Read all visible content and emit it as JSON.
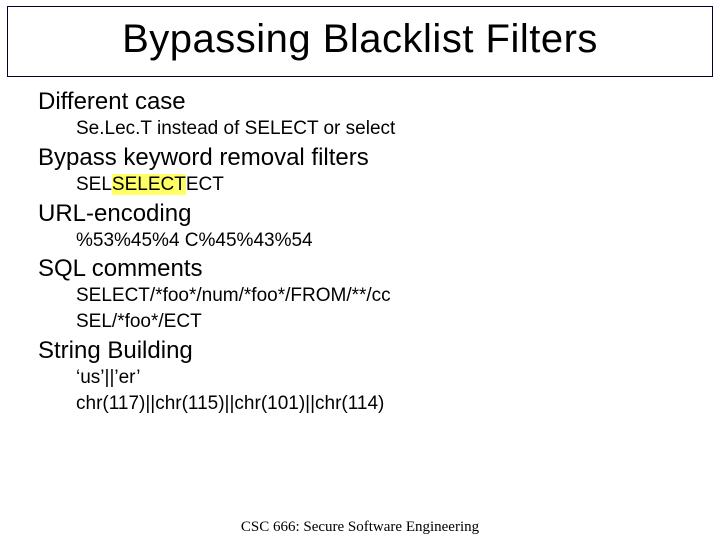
{
  "title": "Bypassing Blacklist Filters",
  "sections": {
    "s1": {
      "heading": "Different case",
      "line1": "Se.Lec.T instead of SELECT or select"
    },
    "s2": {
      "heading": "Bypass keyword removal filters",
      "pre": "SEL",
      "hl": "SELECT",
      "post": "ECT"
    },
    "s3": {
      "heading": "URL-encoding",
      "line1": "%53%45%4 C%45%43%54"
    },
    "s4": {
      "heading": "SQL comments",
      "line1": "SELECT/*foo*/num/*foo*/FROM/**/cc",
      "line2": "SEL/*foo*/ECT"
    },
    "s5": {
      "heading": "String Building",
      "line1": "‘us’||’er’",
      "line2": "chr(117)||chr(115)||chr(101)||chr(114)"
    }
  },
  "footer": "CSC 666: Secure Software Engineering",
  "style": {
    "title_fontsize": 40,
    "heading_fontsize": 24,
    "sub_fontsize": 19,
    "footer_fontsize": 15,
    "highlight_color": "#ffff66",
    "border_color": "#000033",
    "background": "#ffffff",
    "text_color": "#000000"
  }
}
